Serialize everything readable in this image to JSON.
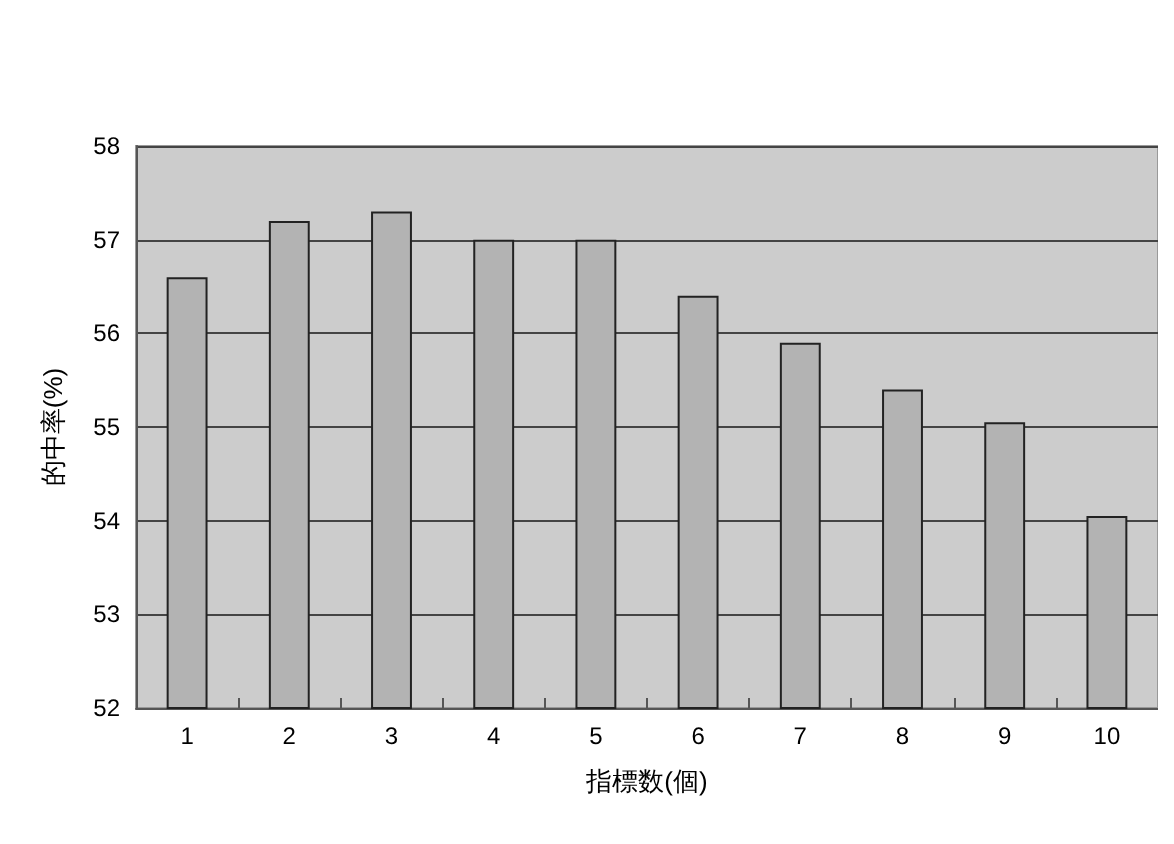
{
  "chart_data": {
    "type": "bar",
    "xlabel": "指標数(個)",
    "ylabel": "的中率(%)",
    "categories": [
      "1",
      "2",
      "3",
      "4",
      "5",
      "6",
      "7",
      "8",
      "9",
      "10"
    ],
    "values": [
      56.6,
      57.2,
      57.3,
      57.0,
      57.0,
      56.4,
      55.9,
      55.4,
      55.05,
      54.05
    ],
    "color": "#b3b3b3",
    "ylim": [
      52,
      58
    ],
    "yticks": [
      52,
      53,
      54,
      55,
      56,
      57,
      58
    ],
    "grid": "y"
  }
}
